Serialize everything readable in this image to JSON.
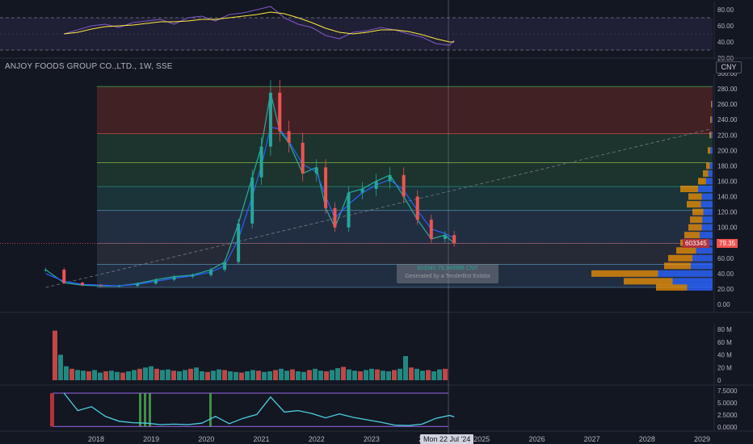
{
  "header": {
    "title": "ANJOY FOODS GROUP CO.,LTD., 1W, SSE",
    "currency_button": "CNY"
  },
  "price": {
    "symbol_tag": "603345",
    "last_value_tag": "79.35",
    "crosshair_date": "Mon 22 Jul '24"
  },
  "tooltip": {
    "line1": "603345 79.349998 CNY",
    "line2": "Generated by a TenderBot Exitdot"
  },
  "colors": {
    "background": "#131722",
    "up": "#26a69a",
    "down": "#ef5350",
    "ma_blue": "#2962ff",
    "rsi_line": "#7e57c2",
    "rsi_ma": "#ffeb3b",
    "atr_line": "#4dd0e1",
    "fib_red": "#4a2325",
    "fib_green": "#1f3a2f",
    "fib_teal": "#1c3a3d",
    "fib_blue": "#253346",
    "volume_profile_orange": "#ff9800",
    "volume_profile_blue": "#2962ff"
  },
  "chart_data": [
    {
      "type": "line",
      "name": "rsi-pane",
      "ylim": [
        20,
        90
      ],
      "ticks": [
        "80.00",
        "60.00",
        "40.00",
        "20.00"
      ],
      "bands": [
        70,
        30
      ],
      "x": [
        "2017-06",
        "2017-09",
        "2017-12",
        "2018-03",
        "2018-06",
        "2018-09",
        "2018-12",
        "2019-03",
        "2019-06",
        "2019-09",
        "2019-12",
        "2020-03",
        "2020-06",
        "2020-09",
        "2020-12",
        "2021-03",
        "2021-06",
        "2021-09",
        "2021-12",
        "2022-03",
        "2022-06",
        "2022-09",
        "2022-12",
        "2023-03",
        "2023-06",
        "2023-09",
        "2023-12",
        "2024-03",
        "2024-06",
        "2024-07"
      ],
      "series": [
        {
          "values": [
            50,
            55,
            60,
            62,
            58,
            64,
            66,
            68,
            62,
            70,
            72,
            66,
            74,
            76,
            80,
            84,
            70,
            62,
            58,
            48,
            44,
            52,
            54,
            58,
            55,
            50,
            46,
            38,
            36,
            42
          ]
        },
        {
          "values": [
            50,
            52,
            56,
            59,
            60,
            61,
            63,
            65,
            65,
            66,
            68,
            68,
            70,
            72,
            74,
            77,
            75,
            70,
            64,
            57,
            52,
            50,
            52,
            55,
            55,
            53,
            49,
            44,
            40,
            40
          ]
        }
      ]
    },
    {
      "type": "line",
      "name": "price-pane",
      "ylim": [
        0,
        300
      ],
      "ticks": [
        "300.00",
        "280.00",
        "260.00",
        "240.00",
        "220.00",
        "200.00",
        "180.00",
        "160.00",
        "140.00",
        "120.00",
        "100.00",
        "80.00",
        "60.00",
        "40.00",
        "20.00",
        "0.00"
      ],
      "fib_levels": [
        22.0,
        52.0,
        79.35,
        122.0,
        153.0,
        184.0,
        222.0,
        283.0
      ],
      "x": [
        "2017-02",
        "2017-06",
        "2017-10",
        "2018-02",
        "2018-06",
        "2018-10",
        "2019-02",
        "2019-06",
        "2019-10",
        "2020-02",
        "2020-05",
        "2020-08",
        "2020-11",
        "2021-01",
        "2021-03",
        "2021-05",
        "2021-07",
        "2021-10",
        "2022-01",
        "2022-03",
        "2022-05",
        "2022-08",
        "2022-11",
        "2023-02",
        "2023-05",
        "2023-08",
        "2023-11",
        "2024-02",
        "2024-05",
        "2024-07"
      ],
      "series": [
        {
          "name": "close",
          "values": [
            45,
            28,
            25,
            24,
            24,
            27,
            32,
            36,
            38,
            45,
            55,
            105,
            165,
            205,
            275,
            225,
            210,
            170,
            178,
            125,
            100,
            145,
            150,
            160,
            168,
            140,
            110,
            85,
            90,
            79.35
          ]
        },
        {
          "name": "ma",
          "values": [
            40,
            30,
            26,
            25,
            24,
            26,
            30,
            34,
            37,
            42,
            50,
            85,
            140,
            180,
            230,
            228,
            212,
            182,
            172,
            140,
            112,
            130,
            145,
            155,
            162,
            148,
            122,
            98,
            92,
            86
          ]
        }
      ],
      "trend_line": {
        "from": [
          "2017-02",
          22.0
        ],
        "to": [
          "2029-03",
          228.0
        ]
      }
    },
    {
      "type": "bar",
      "name": "volume-pane",
      "ylim": [
        0,
        80
      ],
      "ticks": [
        "80 M",
        "60 M",
        "40 M",
        "20 M",
        "0"
      ],
      "note_unit": "M",
      "values": [
        78,
        40,
        22,
        18,
        16,
        15,
        14,
        16,
        12,
        14,
        15,
        13,
        12,
        14,
        16,
        18,
        20,
        22,
        18,
        16,
        17,
        15,
        14,
        16,
        18,
        20,
        14,
        13,
        15,
        17,
        16,
        14,
        13,
        12,
        14,
        16,
        15,
        13,
        14,
        16,
        18,
        15,
        17,
        14,
        13,
        16,
        18,
        15,
        14,
        16,
        19,
        21,
        17,
        15,
        14,
        16,
        18,
        17,
        15,
        14,
        16,
        18,
        38,
        20,
        18,
        15,
        16,
        14,
        17,
        18
      ]
    },
    {
      "type": "line",
      "name": "atr-pane",
      "ylim": [
        0,
        7.5
      ],
      "ticks": [
        "7.5000",
        "5.0000",
        "2.5000",
        "0.0000"
      ],
      "x": [
        "2017-06",
        "2017-09",
        "2017-12",
        "2018-03",
        "2018-06",
        "2018-09",
        "2018-12",
        "2019-03",
        "2019-06",
        "2019-09",
        "2019-12",
        "2020-03",
        "2020-06",
        "2020-09",
        "2020-12",
        "2021-03",
        "2021-06",
        "2021-09",
        "2021-12",
        "2022-03",
        "2022-06",
        "2022-09",
        "2022-12",
        "2023-03",
        "2023-06",
        "2023-09",
        "2023-12",
        "2024-03",
        "2024-06",
        "2024-07"
      ],
      "series": [
        {
          "values": [
            7.0,
            3.4,
            4.2,
            2.2,
            1.2,
            0.9,
            0.8,
            0.5,
            0.6,
            0.5,
            0.8,
            2.2,
            0.7,
            1.8,
            2.6,
            6.2,
            3.1,
            3.4,
            2.8,
            1.9,
            2.7,
            2.0,
            1.5,
            1.0,
            0.4,
            0.3,
            0.6,
            1.8,
            2.4,
            2.1
          ]
        }
      ]
    }
  ],
  "time_axis": [
    "2018",
    "2019",
    "2020",
    "2021",
    "2022",
    "2023",
    "2024",
    "2025",
    "2026",
    "2027",
    "2028",
    "2029"
  ]
}
